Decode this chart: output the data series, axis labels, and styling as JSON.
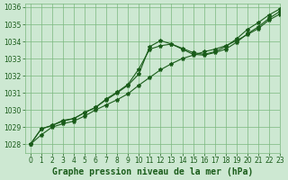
{
  "background_color": "#cde8d2",
  "grid_color": "#7ab87e",
  "line_color": "#1a5c1a",
  "xlabel": "Graphe pression niveau de la mer (hPa)",
  "xlim": [
    -0.5,
    23
  ],
  "ylim": [
    1027.5,
    1036.2
  ],
  "yticks": [
    1028,
    1029,
    1030,
    1031,
    1032,
    1033,
    1034,
    1035,
    1036
  ],
  "xticks": [
    0,
    1,
    2,
    3,
    4,
    5,
    6,
    7,
    8,
    9,
    10,
    11,
    12,
    13,
    14,
    15,
    16,
    17,
    18,
    19,
    20,
    21,
    22,
    23
  ],
  "line1_x": [
    0,
    1,
    2,
    3,
    4,
    5,
    6,
    7,
    8,
    9,
    10,
    11,
    12,
    13,
    14,
    15,
    16,
    17,
    18,
    19,
    20,
    21,
    22,
    23
  ],
  "line1_y": [
    1028.0,
    1028.55,
    1029.0,
    1029.2,
    1029.35,
    1029.65,
    1030.0,
    1030.3,
    1030.6,
    1030.95,
    1031.45,
    1031.9,
    1032.35,
    1032.7,
    1033.0,
    1033.2,
    1033.4,
    1033.55,
    1033.75,
    1034.05,
    1034.4,
    1034.75,
    1035.25,
    1035.6
  ],
  "line2_x": [
    0,
    1,
    2,
    3,
    4,
    5,
    6,
    7,
    8,
    9,
    10,
    11,
    12,
    13,
    14,
    15,
    16,
    17,
    18,
    19,
    20,
    21,
    22,
    23
  ],
  "line2_y": [
    1028.0,
    1028.9,
    1029.1,
    1029.4,
    1029.5,
    1029.85,
    1030.15,
    1030.6,
    1031.0,
    1031.45,
    1032.1,
    1033.7,
    1034.05,
    1033.85,
    1033.55,
    1033.25,
    1033.2,
    1033.35,
    1033.55,
    1033.95,
    1034.45,
    1034.85,
    1035.35,
    1035.75
  ],
  "line3_x": [
    0,
    1,
    2,
    3,
    4,
    5,
    6,
    7,
    8,
    9,
    10,
    11,
    12,
    13,
    14,
    15,
    16,
    17,
    18,
    19,
    20,
    21,
    22,
    23
  ],
  "line3_y": [
    1028.0,
    1028.9,
    1029.1,
    1029.35,
    1029.5,
    1029.85,
    1030.15,
    1030.65,
    1031.05,
    1031.5,
    1032.4,
    1033.55,
    1033.75,
    1033.85,
    1033.6,
    1033.35,
    1033.25,
    1033.4,
    1033.7,
    1034.15,
    1034.7,
    1035.1,
    1035.55,
    1035.9
  ],
  "marker": "*",
  "markersize": 3,
  "linewidth": 0.8,
  "tick_label_fontsize": 5.5,
  "xlabel_fontsize": 7,
  "xlabel_fontweight": "bold"
}
